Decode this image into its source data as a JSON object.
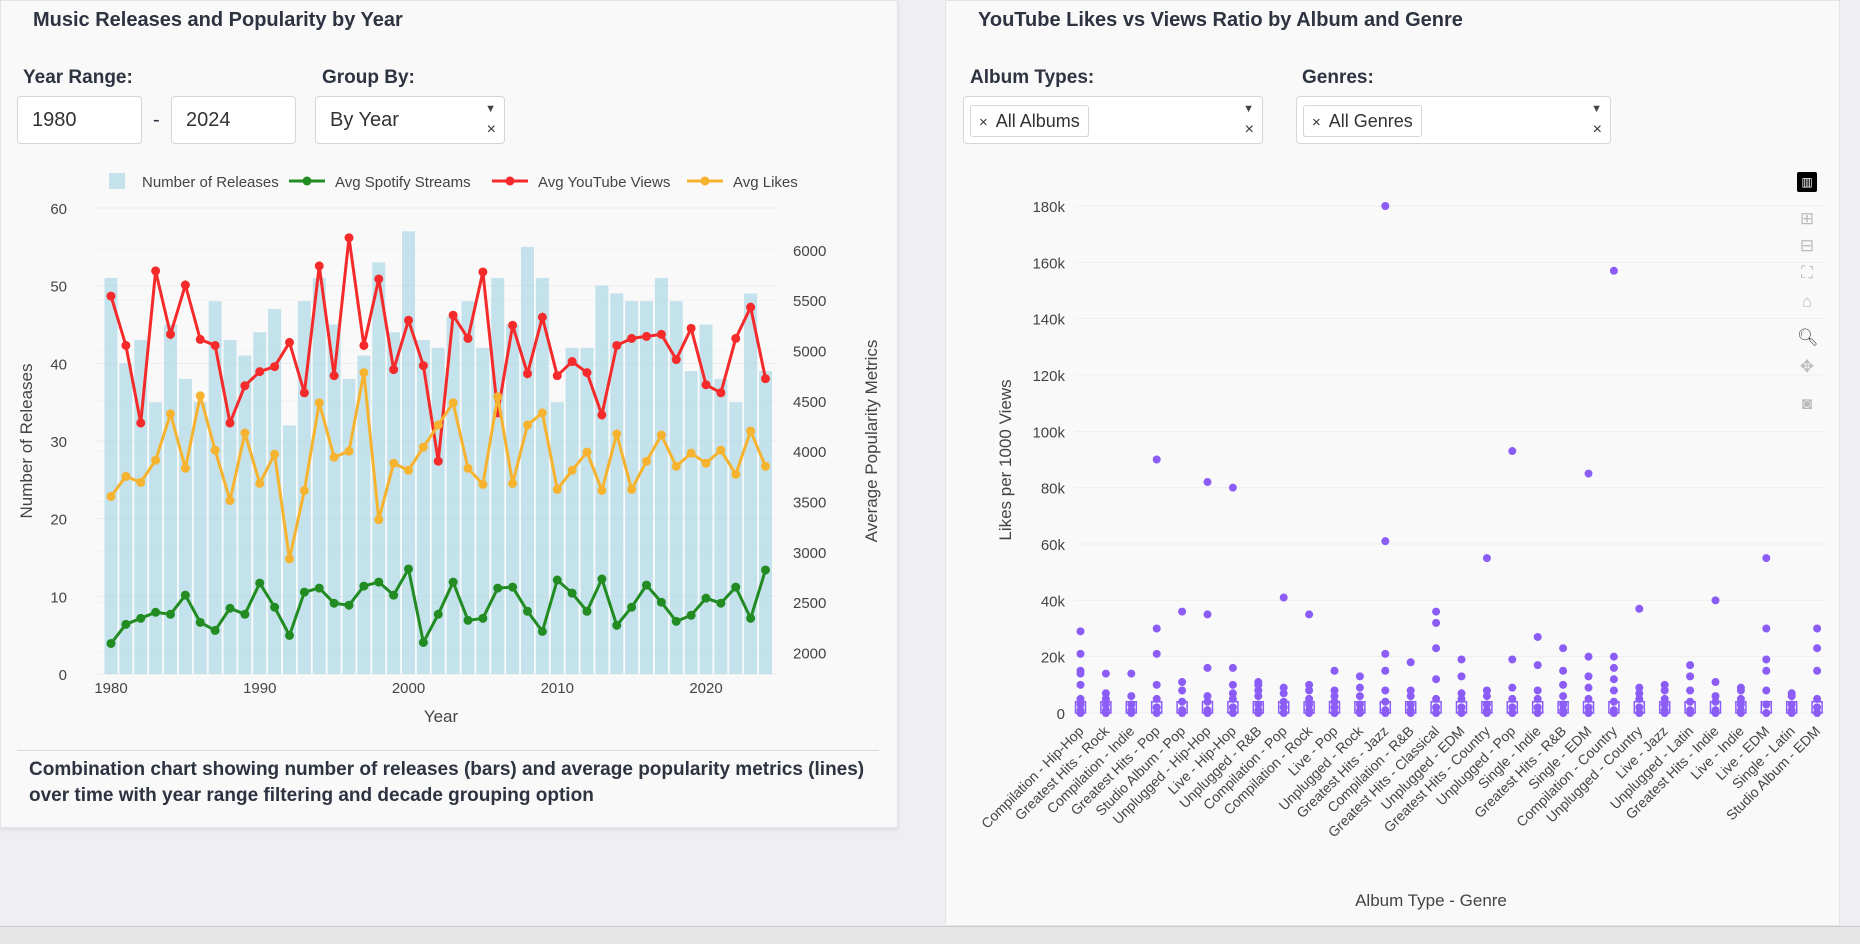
{
  "left": {
    "title": "Music Releases and Popularity by Year",
    "year_range_label": "Year Range:",
    "year_from": "1980",
    "year_sep": "-",
    "year_to": "2024",
    "group_by_label": "Group By:",
    "group_by_value": "By Year",
    "caption": "Combination chart showing number of releases (bars) and average popularity metrics (lines) over time with year range filtering and decade grouping option"
  },
  "right": {
    "title": "YouTube Likes vs Views Ratio by Album and Genre",
    "album_types_label": "Album Types:",
    "album_types_value": "All Albums",
    "genres_label": "Genres:",
    "genres_value": "All Genres",
    "chip_remove": "×",
    "clear": "×",
    "dropdown_arrow": "▼"
  },
  "chart_data": [
    {
      "type": "bar+line",
      "xlabel": "Year",
      "ylabel": "Number of Releases",
      "y2label": "Average Popularity Metrics",
      "ylim": [
        0,
        60
      ],
      "y2lim": [
        1787,
        6415
      ],
      "yticks": [
        "0",
        "10",
        "20",
        "30",
        "40",
        "50",
        "60"
      ],
      "y2ticks": [
        "2000",
        "2500",
        "3000",
        "3500",
        "4000",
        "4500",
        "5000",
        "5500",
        "6000"
      ],
      "xticks": [
        "1980",
        "1990",
        "2000",
        "2010",
        "2020"
      ],
      "legend_position": "top",
      "grid": true,
      "x": [
        1980,
        1981,
        1982,
        1983,
        1984,
        1985,
        1986,
        1987,
        1988,
        1989,
        1990,
        1991,
        1992,
        1993,
        1994,
        1995,
        1996,
        1997,
        1998,
        1999,
        2000,
        2001,
        2002,
        2003,
        2004,
        2005,
        2006,
        2007,
        2008,
        2009,
        2010,
        2011,
        2012,
        2013,
        2014,
        2015,
        2016,
        2017,
        2018,
        2019,
        2020,
        2021,
        2022,
        2023,
        2024
      ],
      "series": [
        {
          "name": "Number of Releases",
          "type": "bar",
          "axis": "y",
          "color": "#add8e6",
          "values": [
            51,
            40,
            43,
            35,
            45,
            38,
            35,
            48,
            43,
            41,
            44,
            47,
            32,
            48,
            51,
            45,
            38,
            41,
            53,
            44,
            57,
            43,
            42,
            46,
            48,
            42,
            51,
            45,
            55,
            51,
            35,
            42,
            42,
            50,
            49,
            48,
            48,
            51,
            48,
            39,
            45,
            38,
            35,
            49,
            39
          ]
        },
        {
          "name": "Avg Spotify Streams",
          "type": "line",
          "axis": "y2",
          "color": "#228b22",
          "values": [
            2090,
            2280,
            2340,
            2400,
            2380,
            2570,
            2300,
            2220,
            2440,
            2380,
            2690,
            2450,
            2170,
            2600,
            2640,
            2490,
            2470,
            2660,
            2700,
            2570,
            2830,
            2100,
            2380,
            2700,
            2320,
            2340,
            2640,
            2650,
            2410,
            2210,
            2720,
            2590,
            2410,
            2730,
            2270,
            2450,
            2670,
            2500,
            2310,
            2370,
            2540,
            2490,
            2650,
            2340,
            2820
          ]
        },
        {
          "name": "Avg YouTube Views",
          "type": "line",
          "axis": "y2",
          "color": "#f52a2a",
          "values": [
            5540,
            5050,
            4280,
            5790,
            5160,
            5650,
            5110,
            5050,
            4280,
            4650,
            4790,
            4840,
            5080,
            4580,
            5840,
            4750,
            6120,
            5050,
            5710,
            4810,
            5300,
            4850,
            3900,
            5350,
            5120,
            5780,
            4380,
            5250,
            4770,
            5330,
            4750,
            4890,
            4780,
            4360,
            5050,
            5120,
            5140,
            5160,
            4910,
            5220,
            4660,
            4580,
            5120,
            5430,
            4720
          ]
        },
        {
          "name": "Avg Likes",
          "type": "line",
          "axis": "y2",
          "color": "#f6b330",
          "values": [
            3550,
            3750,
            3690,
            3910,
            4370,
            3830,
            4550,
            4010,
            3510,
            4180,
            3680,
            3970,
            2930,
            3610,
            4480,
            3940,
            4000,
            4780,
            3320,
            3880,
            3810,
            4040,
            4260,
            4480,
            3830,
            3670,
            4540,
            3680,
            4260,
            4380,
            3620,
            3810,
            3990,
            3610,
            4170,
            3620,
            3900,
            4160,
            3850,
            3980,
            3880,
            4010,
            3770,
            4200,
            3850
          ]
        }
      ]
    },
    {
      "type": "box-scatter",
      "xlabel": "Album Type - Genre",
      "ylabel": "Likes per 1000 Views",
      "ylim": [
        0,
        180000
      ],
      "yticks": [
        "0",
        "20k",
        "40k",
        "60k",
        "80k",
        "100k",
        "120k",
        "140k",
        "160k",
        "180k"
      ],
      "color": "#8b5cf6",
      "categories": [
        "Compilation - Hip-Hop",
        "Greatest Hits - Rock",
        "Compilation - Indie",
        "Greatest Hits - Pop",
        "Studio Album - Pop",
        "Unplugged - Hip-Hop",
        "Live - Hip-Hop",
        "Unplugged - R&B",
        "Compilation - Pop",
        "Compilation - Rock",
        "Live - Pop",
        "Unplugged - Rock",
        "Greatest Hits - Jazz",
        "Compilation - R&B",
        "Greatest Hits - Classical",
        "Unplugged - EDM",
        "Greatest Hits - Country",
        "Unplugged - Pop",
        "Single - Indie",
        "Greatest Hits - R&B",
        "Single - EDM",
        "Compilation - Country",
        "Unplugged - Country",
        "Live - Jazz",
        "Unplugged - Latin",
        "Greatest Hits - Indie",
        "Live - Indie",
        "Live - EDM",
        "Single - Latin",
        "Studio Album - EDM"
      ],
      "points_k": [
        [
          29,
          21,
          15,
          14,
          10,
          5,
          3,
          1,
          0
        ],
        [
          14,
          7,
          5,
          3,
          1,
          0
        ],
        [
          14,
          6,
          3,
          1,
          0
        ],
        [
          90,
          30,
          21,
          10,
          5,
          2,
          0
        ],
        [
          36,
          11,
          8,
          4,
          1,
          0
        ],
        [
          82,
          35,
          16,
          6,
          4,
          1,
          0
        ],
        [
          80,
          16,
          10,
          7,
          5,
          2,
          0
        ],
        [
          11,
          10,
          8,
          6,
          3,
          1,
          0
        ],
        [
          41,
          9,
          7,
          4,
          2,
          0
        ],
        [
          35,
          10,
          8,
          5,
          3,
          1,
          0
        ],
        [
          15,
          8,
          6,
          4,
          2,
          0
        ],
        [
          13,
          9,
          6,
          3,
          1,
          0
        ],
        [
          180,
          61,
          21,
          15,
          8,
          4,
          1,
          0
        ],
        [
          18,
          8,
          6,
          3,
          1,
          0
        ],
        [
          36,
          32,
          23,
          12,
          5,
          2,
          0
        ],
        [
          19,
          13,
          7,
          5,
          2,
          0
        ],
        [
          55,
          8,
          6,
          3,
          1,
          0
        ],
        [
          93,
          19,
          9,
          5,
          2,
          0
        ],
        [
          27,
          17,
          8,
          5,
          2,
          0
        ],
        [
          23,
          15,
          10,
          6,
          3,
          1,
          0
        ],
        [
          85,
          20,
          13,
          9,
          5,
          2,
          0
        ],
        [
          157,
          20,
          16,
          12,
          8,
          4,
          1,
          0
        ],
        [
          37,
          9,
          7,
          5,
          2,
          0
        ],
        [
          10,
          8,
          5,
          3,
          1,
          0
        ],
        [
          17,
          13,
          8,
          4,
          1,
          0
        ],
        [
          40,
          11,
          6,
          4,
          1,
          0
        ],
        [
          9,
          8,
          5,
          3,
          1,
          0
        ],
        [
          55,
          30,
          19,
          15,
          8,
          3,
          0
        ],
        [
          7,
          6,
          3,
          1,
          0
        ],
        [
          30,
          23,
          15,
          5,
          2,
          0
        ]
      ]
    }
  ]
}
